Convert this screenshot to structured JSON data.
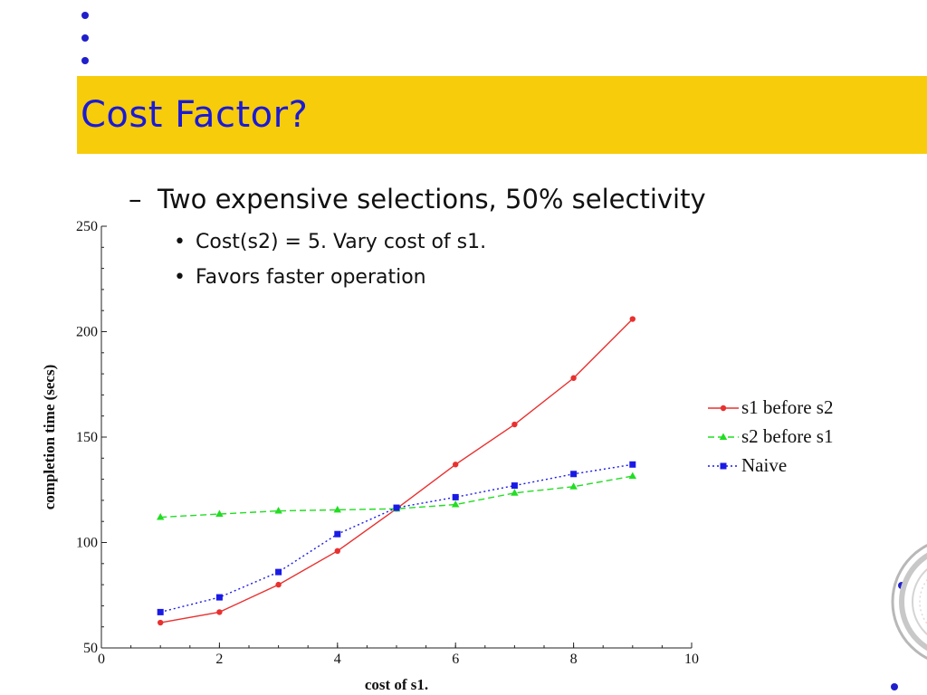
{
  "slide": {
    "title": "Cost Factor?",
    "bullets": [
      {
        "marker": "–",
        "text": "Two expensive selections, 50% selectivity"
      },
      {
        "marker": "•",
        "text": "Cost(s2) = 5.  Vary cost of s1."
      },
      {
        "marker": "•",
        "text": "Favors faster operation"
      }
    ]
  },
  "colors": {
    "title_band": "#f7cc0a",
    "title_text": "#1a1ad6",
    "s1_before_s2": "#e8312f",
    "s2_before_s1": "#22dd22",
    "naive": "#1a1ae6"
  },
  "chart_data": {
    "type": "line",
    "title": "",
    "xlabel": "cost of s1.",
    "ylabel": "completion time (secs)",
    "xlim": [
      0,
      10
    ],
    "ylim": [
      50,
      250
    ],
    "xticks": [
      0,
      2,
      4,
      6,
      8,
      10
    ],
    "yticks": [
      50,
      100,
      150,
      200,
      250
    ],
    "x": [
      1,
      2,
      3,
      4,
      5,
      6,
      7,
      8,
      9
    ],
    "grid": false,
    "legend": "right",
    "series": [
      {
        "name": "s1 before s2",
        "marker": "circle",
        "dash": "solid",
        "values": [
          62,
          67,
          80,
          96,
          116,
          137,
          156,
          178,
          206
        ]
      },
      {
        "name": "s2 before s1",
        "marker": "triangle",
        "dash": "dashed",
        "values": [
          112,
          113.5,
          115,
          115.5,
          116,
          118,
          123.5,
          126.5,
          131.5
        ]
      },
      {
        "name": "Naive",
        "marker": "square",
        "dash": "dotted",
        "values": [
          67,
          74,
          86,
          104,
          116.5,
          121.5,
          127,
          132.5,
          137
        ]
      }
    ]
  }
}
